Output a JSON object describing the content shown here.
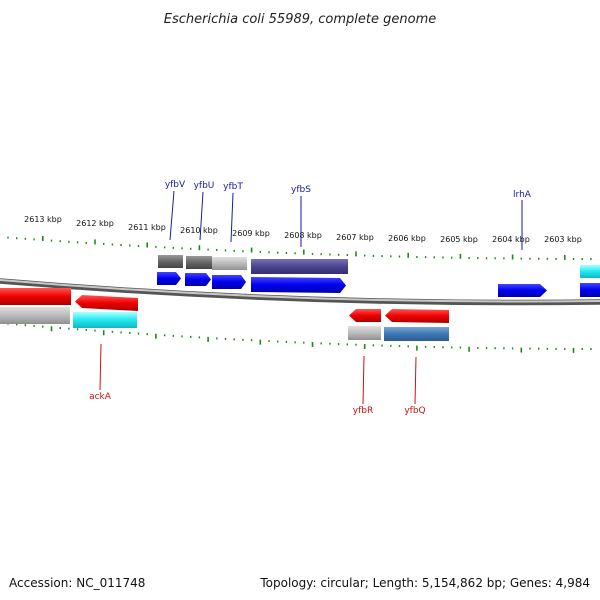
{
  "title": "Escherichia coli 55989, complete genome",
  "footer": {
    "accession": "Accession: NC_011748",
    "summary": "Topology: circular; Length: 5,154,862 bp; Genes: 4,984"
  },
  "colors": {
    "backbone": "#888888",
    "tick": "#1a8a1a",
    "label_top": "#1a1aa8",
    "label_bottom": "#cc1111"
  },
  "kbp_labels": [
    "2613 kbp",
    "2612 kbp",
    "2611 kbp",
    "2610 kbp",
    "2609 kbp",
    "2608 kbp",
    "2607 kbp",
    "2606 kbp",
    "2605 kbp",
    "2604 kbp",
    "2603 kbp"
  ],
  "gene_labels_top": [
    "yfbV",
    "yfbU",
    "yfbT",
    "yfbS",
    "lrhA"
  ],
  "gene_labels_bottom": [
    "ackA",
    "yfbR",
    "yfbQ"
  ]
}
